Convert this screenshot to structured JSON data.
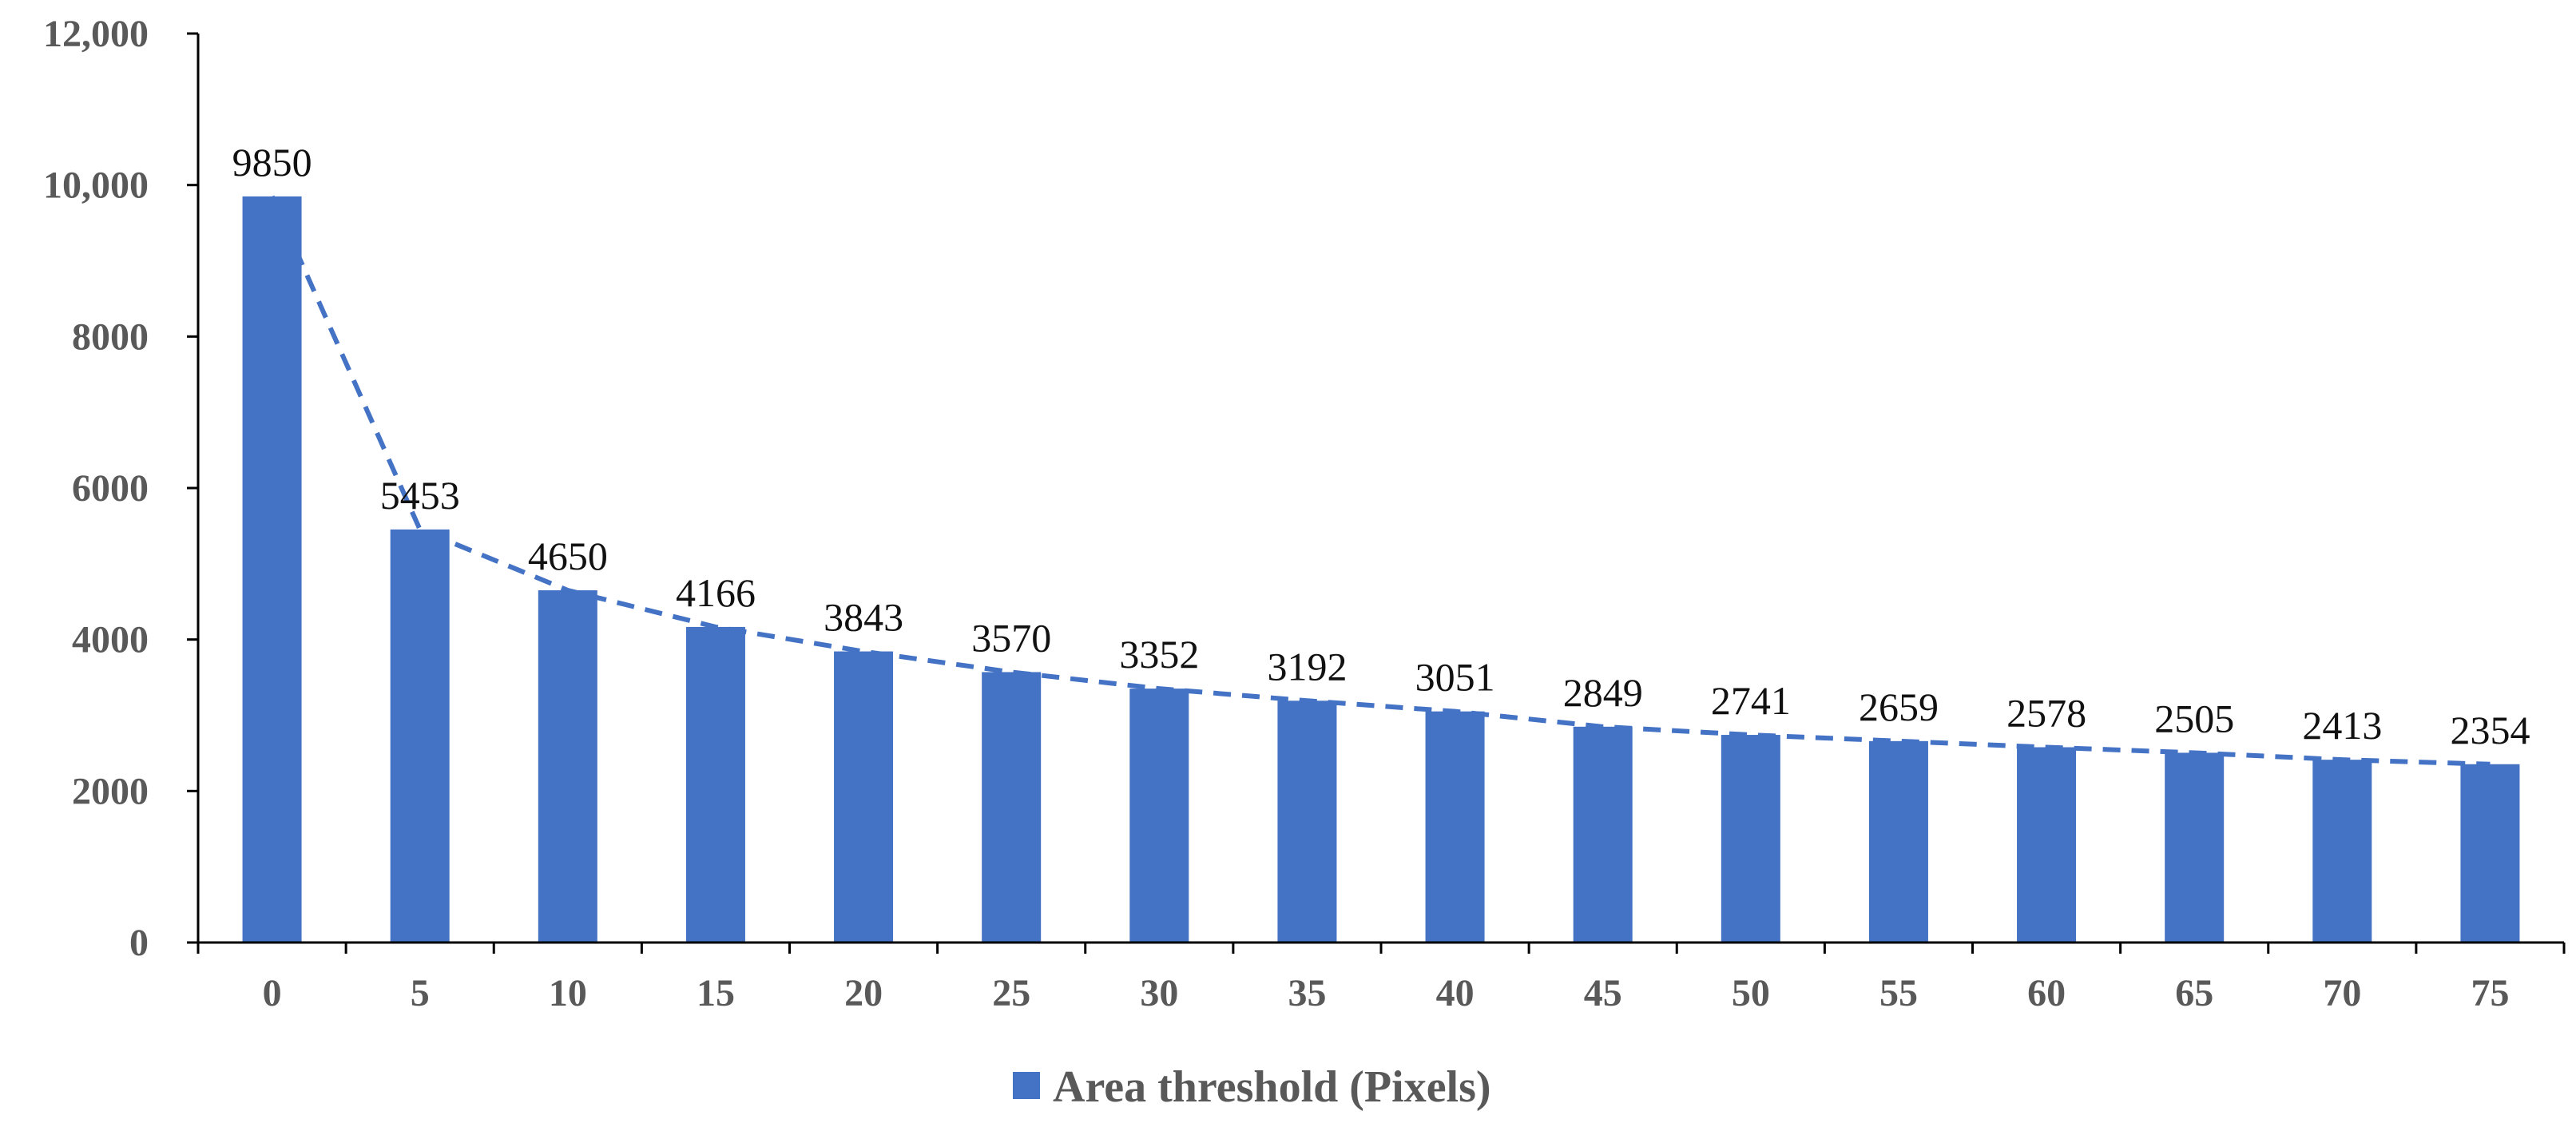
{
  "chart_data": {
    "type": "bar",
    "categories": [
      "0",
      "5",
      "10",
      "15",
      "20",
      "25",
      "30",
      "35",
      "40",
      "45",
      "50",
      "55",
      "60",
      "65",
      "70",
      "75"
    ],
    "series": [
      {
        "name": "Area threshold (Pixels)",
        "values": [
          9850,
          5453,
          4650,
          4166,
          3843,
          3570,
          3352,
          3192,
          3051,
          2849,
          2741,
          2659,
          2578,
          2505,
          2413,
          2354
        ],
        "color": "#4472C4"
      }
    ],
    "data_labels": [
      "9850",
      "5453",
      "4650",
      "4166",
      "3843",
      "3570",
      "3352",
      "3192",
      "3051",
      "2849",
      "2741",
      "2659",
      "2578",
      "2505",
      "2413",
      "2354"
    ],
    "trendline": {
      "style": "dashed",
      "color": "#4472C4",
      "follows_series": true
    },
    "yaxis": {
      "ylim": [
        0,
        12000
      ],
      "ticks": [
        0,
        2000,
        4000,
        6000,
        8000,
        10000,
        12000
      ],
      "tick_labels": [
        "0",
        "2000",
        "4000",
        "6000",
        "8000",
        "10,000",
        "12,000"
      ]
    },
    "title": "",
    "xlabel": "",
    "ylabel": "",
    "grid": false,
    "legend": {
      "position": "bottom",
      "label": "Area threshold (Pixels)",
      "swatch_color": "#4472C4"
    }
  }
}
